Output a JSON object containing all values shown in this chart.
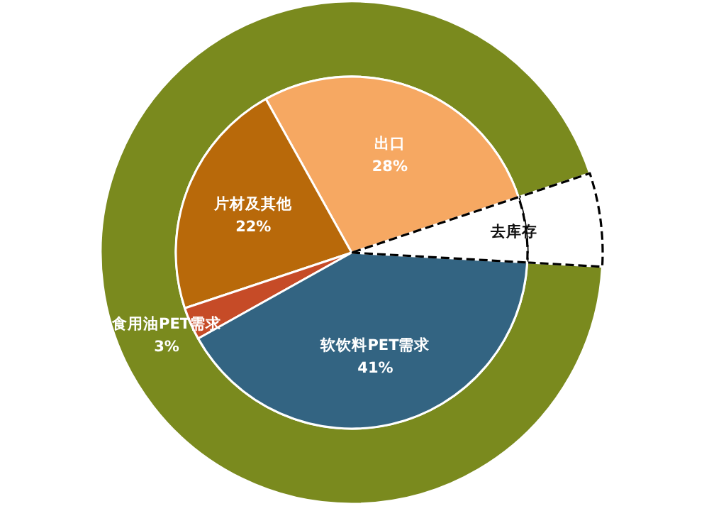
{
  "chart_data": [
    {
      "type": "pie",
      "categories": [
        "出口",
        "片材及其他",
        "食用油PET需求",
        "软饮料PET需求",
        "去库存"
      ],
      "values": [
        28,
        22,
        3,
        41,
        6
      ],
      "colors": [
        "#f6a862",
        "#b8690a",
        "#c64b27",
        "#336482",
        "#ffffff"
      ],
      "value_labels": [
        "28%",
        "22%",
        "3%",
        "41%",
        null
      ]
    },
    {
      "type": "donut",
      "categories": [
        null,
        null
      ],
      "values": [
        94,
        6
      ],
      "colors": [
        "#7a8a1e",
        "#ffffff"
      ]
    }
  ]
}
